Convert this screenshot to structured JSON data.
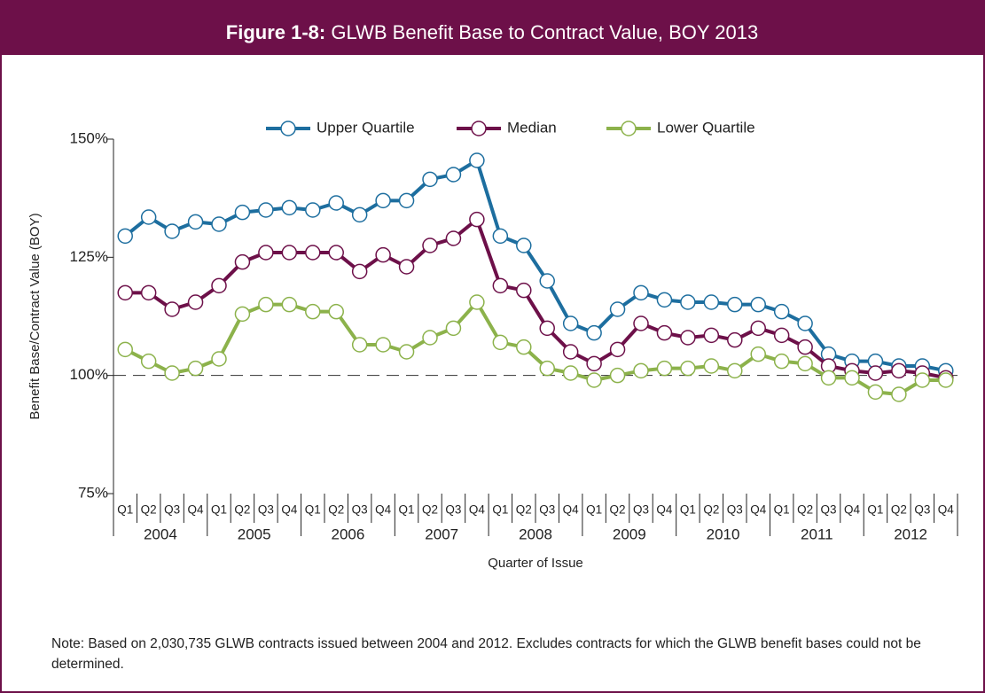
{
  "chart_data": {
    "type": "line",
    "figure_label": "Figure 1-8:",
    "title": "GLWB Benefit Base to Contract Value, BOY 2013",
    "y_label": "Benefit Base/Contract Value (BOY)",
    "x_label": "Quarter of Issue",
    "note": "Note: Based on 2,030,735 GLWB contracts issued between 2004 and 2012. Excludes contracts for which the GLWB benefit bases could not be determined.",
    "categories": [
      "Q1",
      "Q2",
      "Q3",
      "Q4",
      "Q1",
      "Q2",
      "Q3",
      "Q4",
      "Q1",
      "Q2",
      "Q3",
      "Q4",
      "Q1",
      "Q2",
      "Q3",
      "Q4",
      "Q1",
      "Q2",
      "Q3",
      "Q4",
      "Q1",
      "Q2",
      "Q3",
      "Q4",
      "Q1",
      "Q2",
      "Q3",
      "Q4",
      "Q1",
      "Q2",
      "Q3",
      "Q4",
      "Q1",
      "Q2",
      "Q3",
      "Q4"
    ],
    "years": [
      "2004",
      "2005",
      "2006",
      "2007",
      "2008",
      "2009",
      "2010",
      "2011",
      "2012"
    ],
    "ylim": [
      75,
      150
    ],
    "yticks": [
      {
        "value": 75,
        "label": "75%"
      },
      {
        "value": 100,
        "label": "100%"
      },
      {
        "value": 125,
        "label": "125%"
      },
      {
        "value": 150,
        "label": "150%"
      }
    ],
    "reference_line": 100,
    "legend": "top",
    "series": [
      {
        "name": "Upper Quartile",
        "color": "#1d6e9f",
        "values": [
          129.5,
          133.5,
          130.5,
          132.5,
          132,
          134.5,
          135,
          135.5,
          135,
          136.5,
          134,
          137,
          137,
          141.5,
          142.5,
          145.5,
          129.5,
          127.5,
          120,
          111,
          109,
          114,
          117.5,
          116,
          115.5,
          115.5,
          115,
          115,
          113.5,
          111,
          104.5,
          103,
          103,
          102,
          102,
          101
        ]
      },
      {
        "name": "Median",
        "color": "#6d1049",
        "values": [
          117.5,
          117.5,
          114,
          115.5,
          119,
          124,
          126,
          126,
          126,
          126,
          122,
          125.5,
          123,
          127.5,
          129,
          133,
          119,
          118,
          110,
          105,
          102.5,
          105.5,
          111,
          109,
          108,
          108.5,
          107.5,
          110,
          108.5,
          106,
          102,
          101,
          100.5,
          101,
          100.5,
          99.5
        ]
      },
      {
        "name": "Lower Quartile",
        "color": "#8cb24b",
        "values": [
          105.5,
          103,
          100.5,
          101.5,
          103.5,
          113,
          115,
          115,
          113.5,
          113.5,
          106.5,
          106.5,
          105,
          108,
          110,
          115.5,
          107,
          106,
          101.5,
          100.5,
          99,
          100,
          101,
          101.5,
          101.5,
          102,
          101,
          104.5,
          103,
          102.5,
          99.5,
          99.5,
          96.5,
          96,
          99,
          99
        ]
      }
    ]
  }
}
